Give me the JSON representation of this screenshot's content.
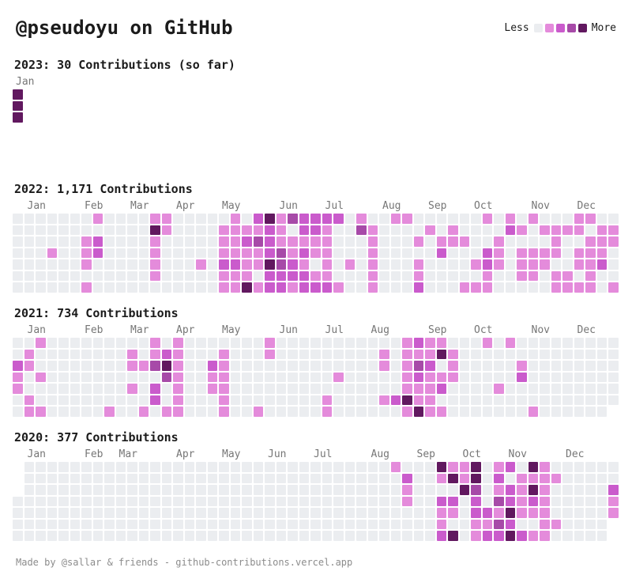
{
  "page": {
    "title": "@pseudoyu on GitHub",
    "footer": "Made by @sallar & friends - github-contributions.vercel.app"
  },
  "legend": {
    "less_label": "Less",
    "more_label": "More"
  },
  "theme": {
    "background": "#ffffff",
    "text": "#1b1b1b",
    "meta": "#767676",
    "footer_text": "#8c8c8c",
    "grades": [
      "#ebedf0",
      "#e48bdb",
      "#ca5bcc",
      "#a74aa8",
      "#61185f"
    ]
  },
  "chart_data": {
    "type": "heatmap",
    "description": "GitHub-style yearly contribution calendars. Each grid is 7 rows (Sun-Sat) by 53 week columns. Digits 0-4 are contribution intensity grades mapping to theme.grades; '-' means no cell drawn (day outside the rendered year).",
    "rows_per_week": 7,
    "weeks_per_year": 53,
    "years": [
      {
        "year": 2023,
        "total": 30,
        "heading": "2023: 30 Contributions (so far)",
        "month_labels": [
          {
            "label": "Jan",
            "week": 1
          }
        ],
        "grid_rows": [
          "4----------------------------------------------------",
          "4----------------------------------------------------",
          "4----------------------------------------------------",
          "-----------------------------------------------------",
          "-----------------------------------------------------",
          "-----------------------------------------------------",
          "-----------------------------------------------------"
        ]
      },
      {
        "year": 2022,
        "total": "1,171",
        "heading": "2022: 1,171 Contributions",
        "month_labels": [
          {
            "label": "Jan",
            "week": 2
          },
          {
            "label": "Feb",
            "week": 7
          },
          {
            "label": "Mar",
            "week": 11
          },
          {
            "label": "Apr",
            "week": 15
          },
          {
            "label": "May",
            "week": 19
          },
          {
            "label": "Jun",
            "week": 24
          },
          {
            "label": "Jul",
            "week": 28
          },
          {
            "label": "Aug",
            "week": 33
          },
          {
            "label": "Sep",
            "week": 37
          },
          {
            "label": "Oct",
            "week": 41
          },
          {
            "label": "Nov",
            "week": 46
          },
          {
            "label": "Dec",
            "week": 50
          }
        ],
        "grid_rows": [
          "00000001000011000001024132222010011000000101010001100",
          "00000000000041000011112102210031000010100002101111011",
          "00000012000010000011232111110001000101110010000100111",
          "00010012000010000011112312110001000002000210111101110",
          "00000010000010001022114321010101000100001210111001120",
          "00000000000010000011102222110001000100000100110110100",
          "00000010000000000011412212221001000200011100000111101"
        ]
      },
      {
        "year": 2021,
        "total": 734,
        "heading": "2021: 734 Contributions",
        "month_labels": [
          {
            "label": "Jan",
            "week": 2
          },
          {
            "label": "Feb",
            "week": 7
          },
          {
            "label": "Mar",
            "week": 11
          },
          {
            "label": "Apr",
            "week": 15
          },
          {
            "label": "May",
            "week": 19
          },
          {
            "label": "Jun",
            "week": 24
          },
          {
            "label": "Jul",
            "week": 28
          },
          {
            "label": "Aug",
            "week": 32
          },
          {
            "label": "Sep",
            "week": 37
          },
          {
            "label": "Oct",
            "week": 41
          },
          {
            "label": "Nov",
            "week": 46
          },
          {
            "label": "Dec",
            "week": 50
          }
        ],
        "grid_rows": [
          "00100000000010100000001000000000001211000101000000000",
          "01000000001012100010001000000000101114100000000000000",
          "21000000001134100210000000000000101320100000100000000",
          "10100000000003100110000000001000001211100000200000000",
          "10000000001020100110000000000000001112000010000000000",
          "01000000000020100010000000010000124110000000000000000",
          "0110000010010110001001000001000000141100000001000000-"
        ]
      },
      {
        "year": 2020,
        "total": 377,
        "heading": "2020: 377 Contributions",
        "month_labels": [
          {
            "label": "Jan",
            "week": 2
          },
          {
            "label": "Feb",
            "week": 7
          },
          {
            "label": "Mar",
            "week": 10
          },
          {
            "label": "Apr",
            "week": 15
          },
          {
            "label": "May",
            "week": 19
          },
          {
            "label": "Jun",
            "week": 23
          },
          {
            "label": "Jul",
            "week": 27
          },
          {
            "label": "Aug",
            "week": 32
          },
          {
            "label": "Sep",
            "week": 36
          },
          {
            "label": "Oct",
            "week": 40
          },
          {
            "label": "Nov",
            "week": 44
          },
          {
            "label": "Dec",
            "week": 49
          }
        ],
        "grid_rows": [
          "-0000000000000000000000000000000010004114012041000000",
          "-0000000000000000000000000000000002001414020111100000",
          "-0000000000000000000000000000000001000043012141000002",
          "00000000000000000000000000000000001002202032121000001",
          "00000000000000000000000000000000000001102214111000001",
          "0000000000000000000000000000000000000100113200110000-",
          "0000000000000000000000000000000000000240122421100000-"
        ]
      }
    ]
  }
}
